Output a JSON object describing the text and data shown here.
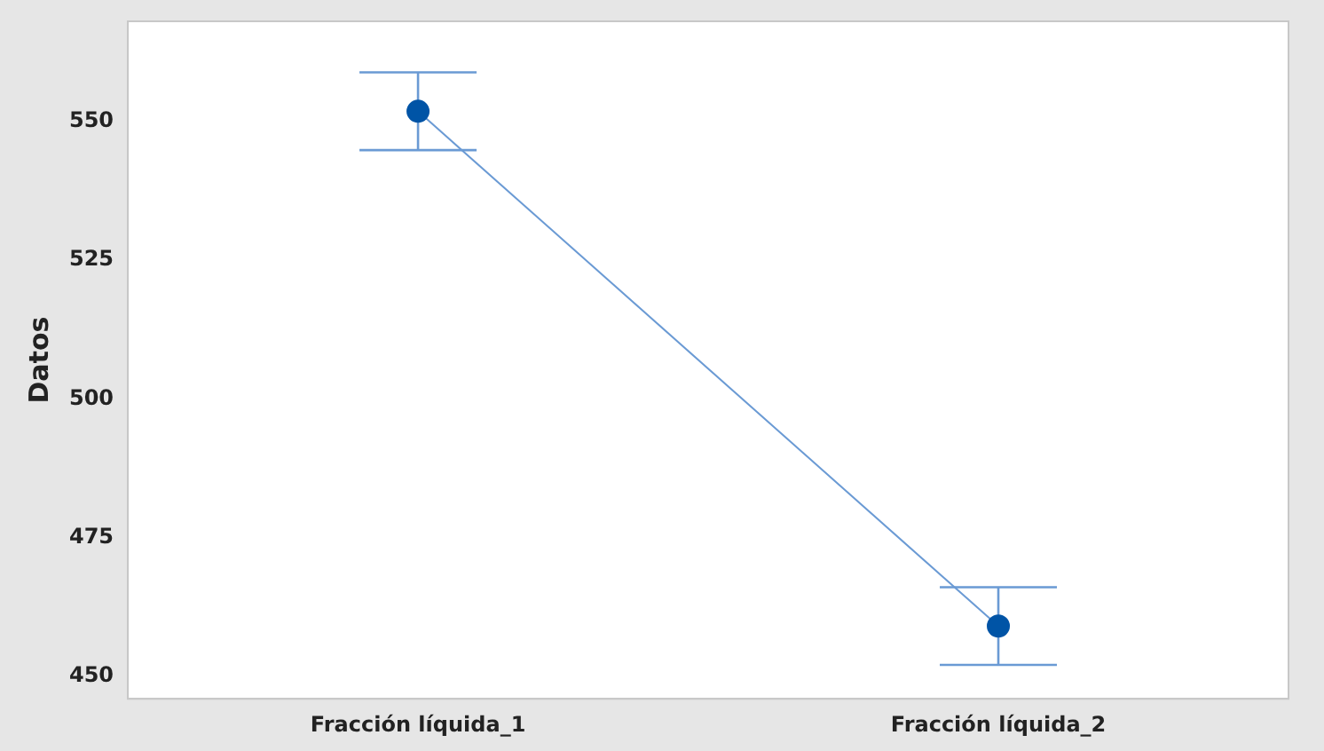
{
  "chart_data": {
    "type": "line",
    "ylabel": "Datos",
    "categories": [
      "Fracción líquida_1",
      "Fracción líquida_2"
    ],
    "values": [
      551.8,
      459.1
    ],
    "errors": [
      7,
      7
    ],
    "color": "#0054a6",
    "ylim": [
      446,
      568
    ],
    "yticks": [
      450,
      475,
      500,
      525,
      550
    ],
    "grid": false,
    "legend": false,
    "marker": "circle",
    "line_style": "solid"
  }
}
